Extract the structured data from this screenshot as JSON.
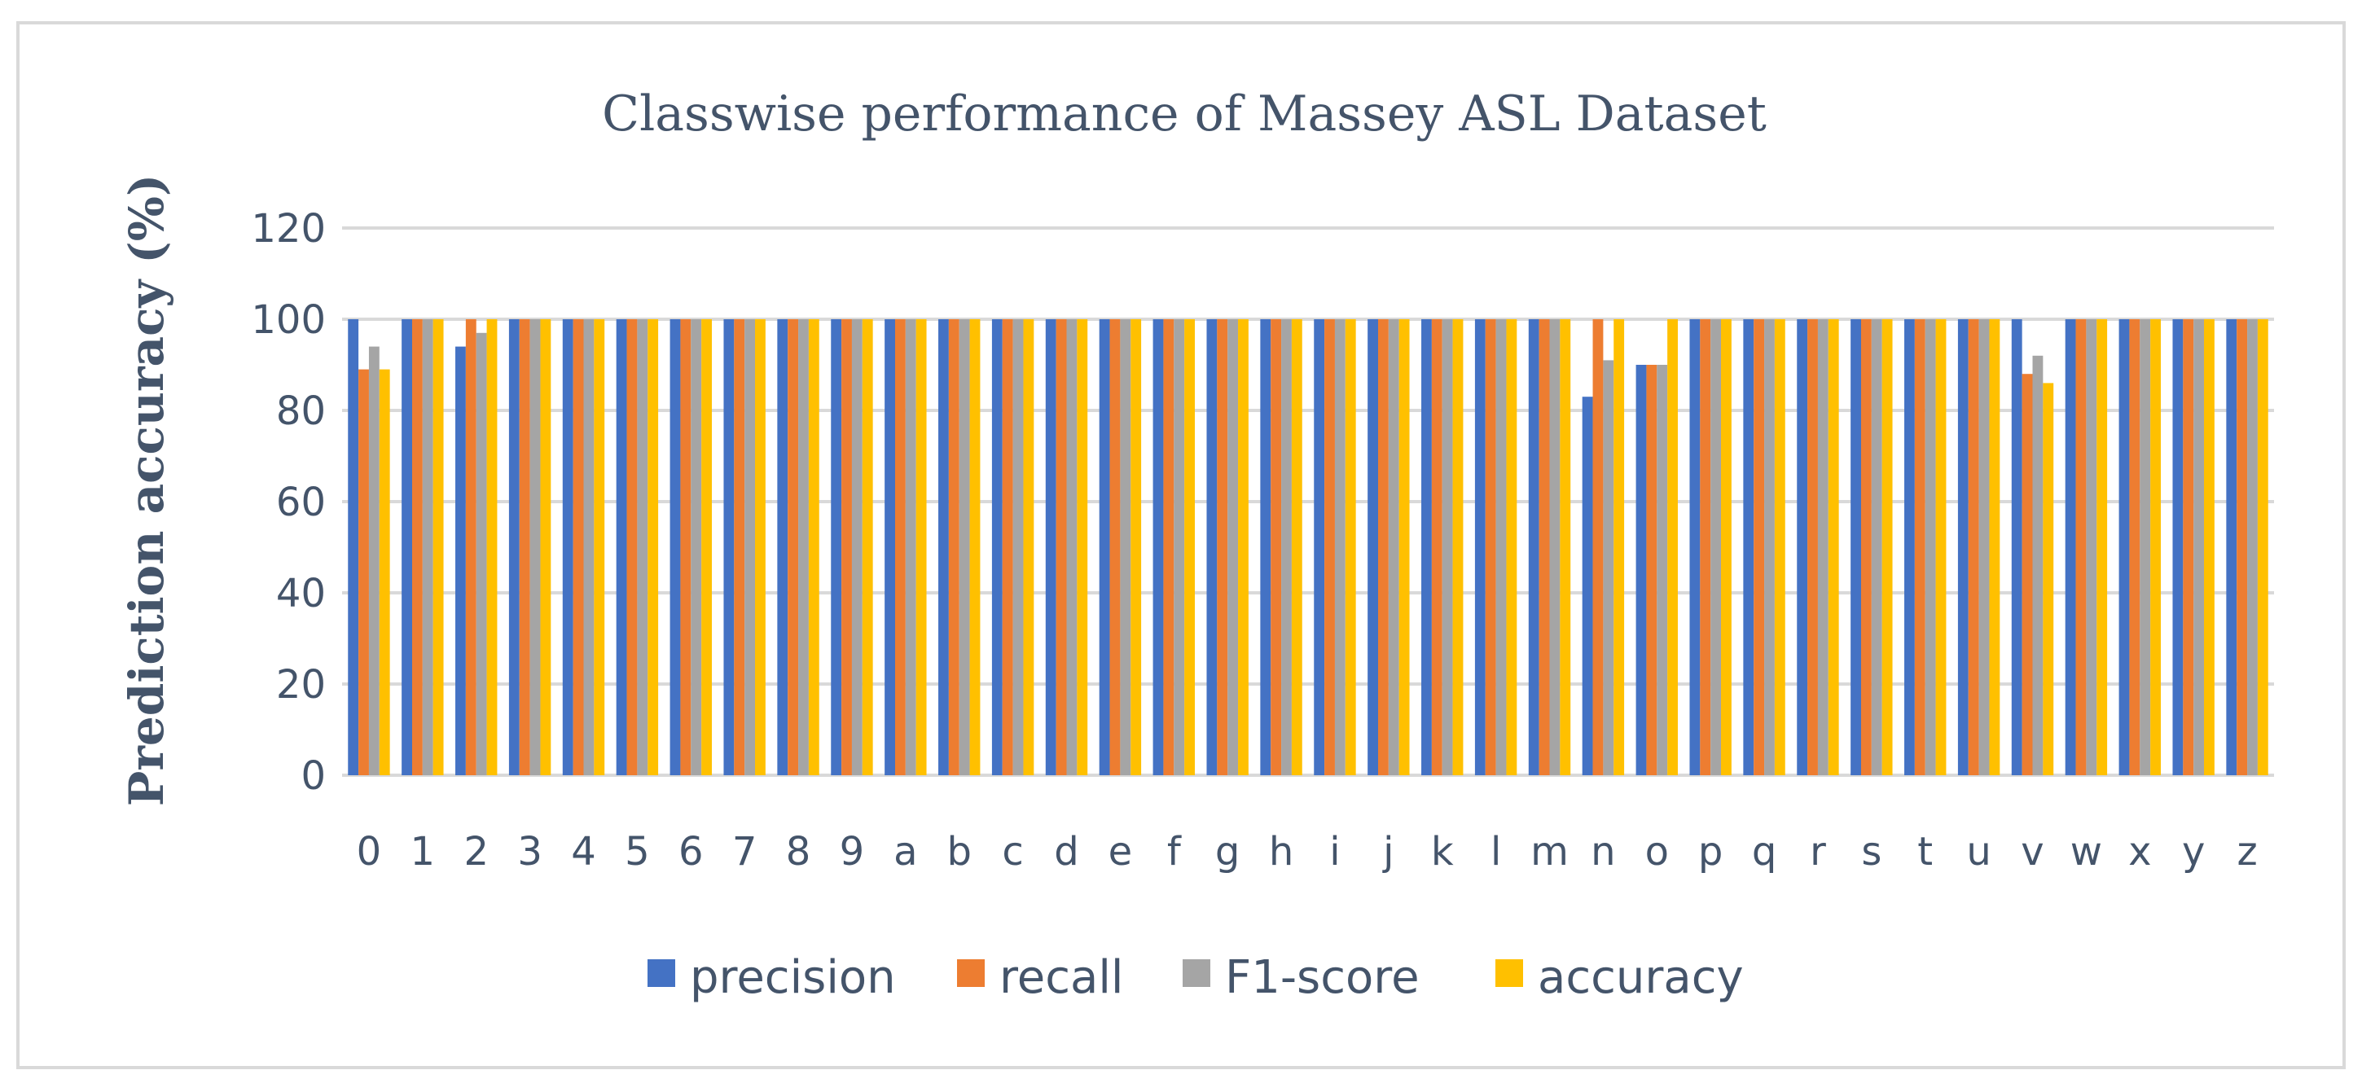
{
  "chart_data": {
    "type": "bar",
    "title": "Classwise performance of Massey ASL Dataset",
    "xlabel": "",
    "ylabel": "Prediction accuracy (%)",
    "ylim": [
      0,
      120
    ],
    "yticks": [
      "0",
      "20",
      "40",
      "60",
      "80",
      "100",
      "120"
    ],
    "grid": true,
    "legend_position": "bottom",
    "categories": [
      "0",
      "1",
      "2",
      "3",
      "4",
      "5",
      "6",
      "7",
      "8",
      "9",
      "a",
      "b",
      "c",
      "d",
      "e",
      "f",
      "g",
      "h",
      "i",
      "j",
      "k",
      "l",
      "m",
      "n",
      "o",
      "p",
      "q",
      "r",
      "s",
      "t",
      "u",
      "v",
      "w",
      "x",
      "y",
      "z"
    ],
    "series": [
      {
        "name": "precision",
        "color": "#4472C4",
        "values": [
          100,
          100,
          94,
          100,
          100,
          100,
          100,
          100,
          100,
          100,
          100,
          100,
          100,
          100,
          100,
          100,
          100,
          100,
          100,
          100,
          100,
          100,
          100,
          83,
          90,
          100,
          100,
          100,
          100,
          100,
          100,
          100,
          100,
          100,
          100,
          100
        ]
      },
      {
        "name": "recall",
        "color": "#ED7D31",
        "values": [
          89,
          100,
          100,
          100,
          100,
          100,
          100,
          100,
          100,
          100,
          100,
          100,
          100,
          100,
          100,
          100,
          100,
          100,
          100,
          100,
          100,
          100,
          100,
          100,
          90,
          100,
          100,
          100,
          100,
          100,
          100,
          88,
          100,
          100,
          100,
          100
        ]
      },
      {
        "name": "F1-score",
        "color": "#A5A5A5",
        "values": [
          94,
          100,
          97,
          100,
          100,
          100,
          100,
          100,
          100,
          100,
          100,
          100,
          100,
          100,
          100,
          100,
          100,
          100,
          100,
          100,
          100,
          100,
          100,
          91,
          90,
          100,
          100,
          100,
          100,
          100,
          100,
          92,
          100,
          100,
          100,
          100
        ]
      },
      {
        "name": "accuracy",
        "color": "#FFC000",
        "values": [
          89,
          100,
          100,
          100,
          100,
          100,
          100,
          100,
          100,
          100,
          100,
          100,
          100,
          100,
          100,
          100,
          100,
          100,
          100,
          100,
          100,
          100,
          100,
          100,
          100,
          100,
          100,
          100,
          100,
          100,
          100,
          86,
          100,
          100,
          100,
          100
        ]
      }
    ]
  },
  "colors": {
    "frame": "#D9D9D9",
    "gridline": "#D9D9D9",
    "text": "#44546A"
  }
}
